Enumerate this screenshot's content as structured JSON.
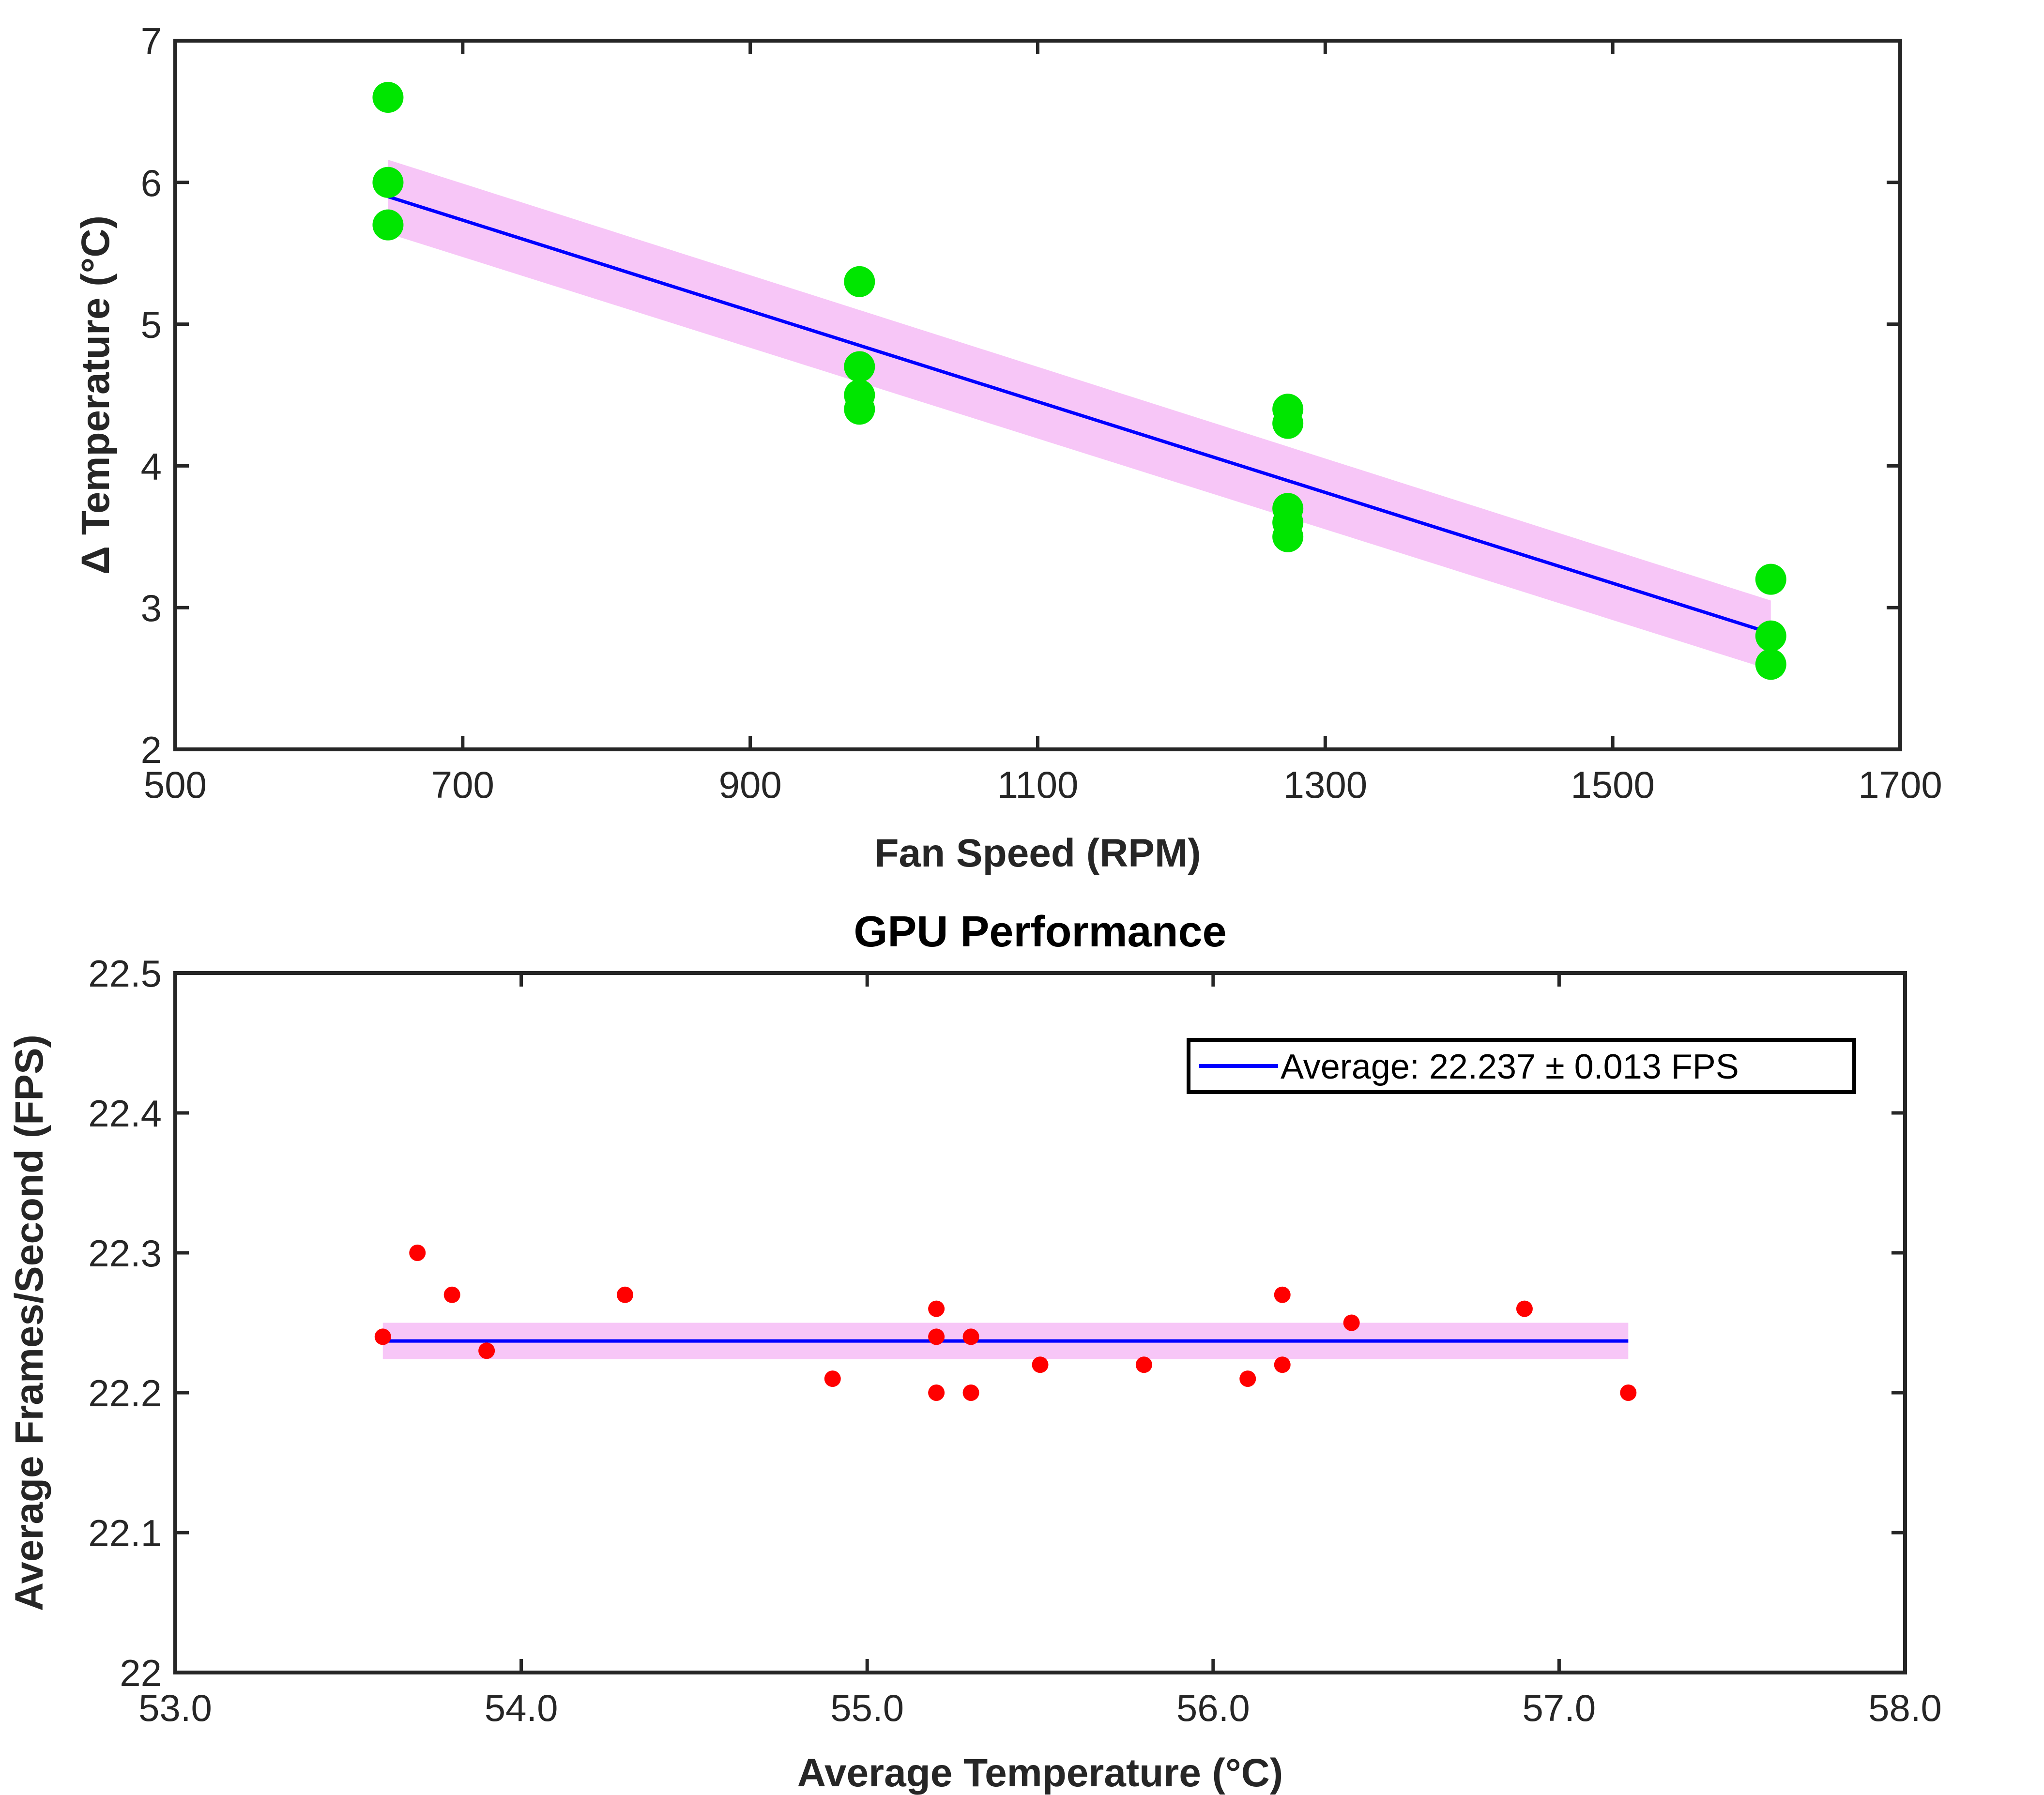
{
  "chart_data": [
    {
      "type": "scatter",
      "title": "",
      "xlabel": "Fan Speed (RPM)",
      "ylabel": "Δ Temperature (°C)",
      "xlim": [
        500,
        1700
      ],
      "ylim": [
        2,
        7
      ],
      "xticks": [
        500,
        700,
        900,
        1100,
        1300,
        1500,
        1700
      ],
      "yticks": [
        2,
        3,
        4,
        5,
        6,
        7
      ],
      "grid": false,
      "series": [
        {
          "kind": "points",
          "color": "#00e600",
          "points": [
            {
              "x": 648,
              "y": 6.6
            },
            {
              "x": 648,
              "y": 6.0
            },
            {
              "x": 648,
              "y": 5.7
            },
            {
              "x": 976,
              "y": 5.3
            },
            {
              "x": 976,
              "y": 4.7
            },
            {
              "x": 976,
              "y": 4.5
            },
            {
              "x": 976,
              "y": 4.4
            },
            {
              "x": 1274,
              "y": 4.4
            },
            {
              "x": 1274,
              "y": 4.3
            },
            {
              "x": 1274,
              "y": 3.7
            },
            {
              "x": 1274,
              "y": 3.6
            },
            {
              "x": 1274,
              "y": 3.5
            },
            {
              "x": 1610,
              "y": 3.2
            },
            {
              "x": 1610,
              "y": 2.8
            },
            {
              "x": 1610,
              "y": 2.6
            }
          ]
        },
        {
          "kind": "fit_line",
          "color": "#0000ff",
          "x": [
            648,
            1610
          ],
          "y": [
            5.9,
            2.82
          ]
        },
        {
          "kind": "confidence_band",
          "color": "#f7c6f7",
          "x": [
            648,
            1610
          ],
          "y_upper": [
            6.16,
            3.05
          ],
          "y_lower": [
            5.64,
            2.56
          ]
        }
      ]
    },
    {
      "type": "scatter",
      "title": "GPU Performance",
      "xlabel": "Average Temperature (°C)",
      "ylabel": "Average Frames/Second (FPS)",
      "xlim": [
        53,
        58
      ],
      "ylim": [
        22,
        22.5
      ],
      "xticks": [
        53,
        54,
        55,
        56,
        57,
        58
      ],
      "yticks": [
        22,
        22.1,
        22.2,
        22.3,
        22.4,
        22.5
      ],
      "grid": false,
      "legend": {
        "placement": "top-right",
        "entries": [
          "Average: 22.237 ± 0.013 FPS"
        ]
      },
      "series": [
        {
          "kind": "points",
          "color": "#ff0000",
          "points": [
            {
              "x": 53.6,
              "y": 22.24
            },
            {
              "x": 53.7,
              "y": 22.3
            },
            {
              "x": 53.8,
              "y": 22.27
            },
            {
              "x": 53.9,
              "y": 22.23
            },
            {
              "x": 54.3,
              "y": 22.27
            },
            {
              "x": 54.9,
              "y": 22.21
            },
            {
              "x": 55.2,
              "y": 22.26
            },
            {
              "x": 55.2,
              "y": 22.24
            },
            {
              "x": 55.2,
              "y": 22.2
            },
            {
              "x": 55.3,
              "y": 22.24
            },
            {
              "x": 55.3,
              "y": 22.2
            },
            {
              "x": 55.5,
              "y": 22.22
            },
            {
              "x": 55.8,
              "y": 22.22
            },
            {
              "x": 56.1,
              "y": 22.21
            },
            {
              "x": 56.2,
              "y": 22.27
            },
            {
              "x": 56.2,
              "y": 22.22
            },
            {
              "x": 56.4,
              "y": 22.25
            },
            {
              "x": 56.9,
              "y": 22.26
            },
            {
              "x": 57.2,
              "y": 22.2
            }
          ]
        },
        {
          "kind": "average_line",
          "name": "Average: 22.237 ± 0.013 FPS",
          "color": "#0000ff",
          "x": [
            53.6,
            57.2
          ],
          "y": [
            22.237,
            22.237
          ]
        },
        {
          "kind": "confidence_band",
          "color": "#f7c6f7",
          "x": [
            53.6,
            57.2
          ],
          "y_upper": [
            22.25,
            22.25
          ],
          "y_lower": [
            22.224,
            22.224
          ]
        }
      ]
    }
  ]
}
